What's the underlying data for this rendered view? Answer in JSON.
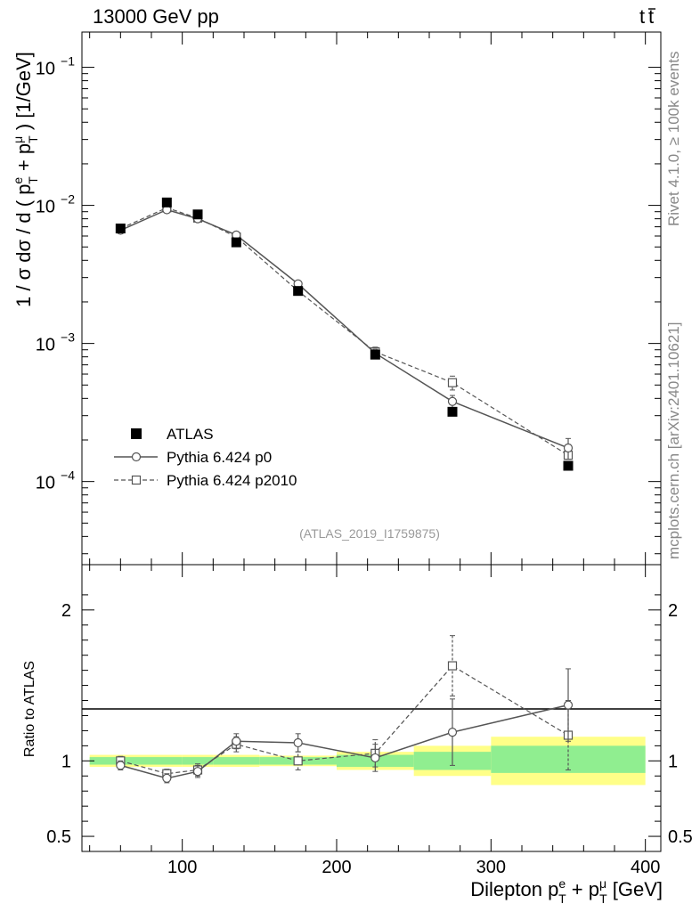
{
  "header": {
    "left": "13000 GeV pp",
    "right_base": "t",
    "right_bar": "t"
  },
  "side": {
    "rivet": "Rivet 4.1.0, ≥ 100k events",
    "mcplots": "mcplots.cern.ch [arXiv:2401.10621]"
  },
  "colors": {
    "data": "#000000",
    "p0": "#555555",
    "p2010": "#555555",
    "band_inner": "#90ee90",
    "band_outer": "#ffff88"
  },
  "chart_data": [
    {
      "type": "line",
      "panel": "main",
      "title": "",
      "analysis_label": "(ATLAS_2019_I1759875)",
      "ylabel": {
        "prefix": "1 / σ  dσ / d ( p",
        "sup1": "e",
        "sub1": "T",
        "mid": " + p",
        "sup2": "μ",
        "sub2": "T",
        "suffix": " ) [1/GeV]"
      },
      "yscale": "log",
      "xlim": [
        35,
        410
      ],
      "ylim": [
        2.5e-05,
        0.18
      ],
      "yticks": [
        {
          "value": 0.1,
          "base": "10",
          "exp": "−1"
        },
        {
          "value": 0.01,
          "base": "10",
          "exp": "−2"
        },
        {
          "value": 0.001,
          "base": "10",
          "exp": "−3"
        },
        {
          "value": 0.0001,
          "base": "10",
          "exp": "−4"
        }
      ],
      "legend_position": "bottom-left",
      "series": [
        {
          "name": "ATLAS",
          "style": "markers",
          "marker": "filled-square",
          "x": [
            60,
            90,
            110,
            135,
            175,
            225,
            275,
            350
          ],
          "y": [
            0.0068,
            0.0105,
            0.0086,
            0.0054,
            0.0024,
            0.00083,
            0.00032,
            0.00013
          ],
          "yerr": [
            0.0003,
            0.0004,
            0.0003,
            0.0002,
            0.0001,
            4e-05,
            2e-05,
            1e-05
          ]
        },
        {
          "name": "Pythia 6.424 p0",
          "style": "solid",
          "marker": "open-circle",
          "x": [
            60,
            90,
            110,
            135,
            175,
            225,
            275,
            350
          ],
          "y": [
            0.0066,
            0.0093,
            0.008,
            0.0061,
            0.0027,
            0.00085,
            0.00038,
            0.000175
          ],
          "yerr": [
            0.0002,
            0.0003,
            0.0002,
            0.0002,
            0.0001,
            6e-05,
            4e-05,
            3e-05
          ]
        },
        {
          "name": "Pythia 6.424 p2010",
          "style": "dashed",
          "marker": "open-square",
          "x": [
            60,
            90,
            110,
            135,
            175,
            225,
            275,
            350
          ],
          "y": [
            0.0068,
            0.0096,
            0.0081,
            0.0059,
            0.0024,
            0.00087,
            0.00052,
            0.000155
          ],
          "yerr": [
            0.0002,
            0.0003,
            0.0002,
            0.0002,
            0.0001,
            7e-05,
            6e-05,
            3e-05
          ]
        }
      ]
    },
    {
      "type": "line",
      "panel": "ratio",
      "ylabel": "Ratio to ATLAS",
      "xlabel": {
        "prefix": "Dilepton p",
        "sup1": "e",
        "sub1": "T",
        "mid": " + p",
        "sup2": "μ",
        "sub2": "T",
        "suffix": " [GeV]"
      },
      "xlim": [
        35,
        410
      ],
      "ylim": [
        0.4,
        2.3
      ],
      "yticks": [
        {
          "value": 2,
          "label": "2"
        },
        {
          "value": 1,
          "label": "1"
        },
        {
          "value": 0.5,
          "label": "0.5"
        }
      ],
      "xticks": [
        {
          "value": 100,
          "label": "100"
        },
        {
          "value": 200,
          "label": "200"
        },
        {
          "value": 300,
          "label": "300"
        },
        {
          "value": 400,
          "label": "400"
        }
      ],
      "bands": [
        {
          "x0": 40,
          "x1": 80,
          "inner": [
            0.975,
            1.025
          ],
          "outer": [
            0.96,
            1.04
          ]
        },
        {
          "x0": 80,
          "x1": 100,
          "inner": [
            0.975,
            1.025
          ],
          "outer": [
            0.96,
            1.04
          ]
        },
        {
          "x0": 100,
          "x1": 120,
          "inner": [
            0.975,
            1.025
          ],
          "outer": [
            0.96,
            1.04
          ]
        },
        {
          "x0": 120,
          "x1": 150,
          "inner": [
            0.975,
            1.025
          ],
          "outer": [
            0.96,
            1.04
          ]
        },
        {
          "x0": 150,
          "x1": 200,
          "inner": [
            0.975,
            1.025
          ],
          "outer": [
            0.965,
            1.035
          ]
        },
        {
          "x0": 200,
          "x1": 250,
          "inner": [
            0.96,
            1.04
          ],
          "outer": [
            0.94,
            1.06
          ]
        },
        {
          "x0": 250,
          "x1": 300,
          "inner": [
            0.94,
            1.06
          ],
          "outer": [
            0.9,
            1.1
          ]
        },
        {
          "x0": 300,
          "x1": 400,
          "inner": [
            0.92,
            1.1
          ],
          "outer": [
            0.84,
            1.16
          ]
        }
      ],
      "series": [
        {
          "name": "Pythia 6.424 p0",
          "style": "solid",
          "marker": "open-circle",
          "x": [
            60,
            90,
            110,
            135,
            175,
            225,
            275,
            350
          ],
          "y": [
            0.97,
            0.885,
            0.93,
            1.13,
            1.12,
            1.02,
            1.19,
            1.37
          ],
          "yerr": [
            0.03,
            0.03,
            0.04,
            0.05,
            0.06,
            0.09,
            0.22,
            0.24
          ]
        },
        {
          "name": "Pythia 6.424 p2010",
          "style": "dashed",
          "marker": "open-square",
          "x": [
            60,
            90,
            110,
            135,
            175,
            225,
            275,
            350
          ],
          "y": [
            1.0,
            0.915,
            0.94,
            1.11,
            1.0,
            1.05,
            1.63,
            1.17
          ],
          "yerr": [
            0.03,
            0.03,
            0.04,
            0.05,
            0.06,
            0.09,
            0.2,
            0.23
          ]
        }
      ]
    }
  ]
}
